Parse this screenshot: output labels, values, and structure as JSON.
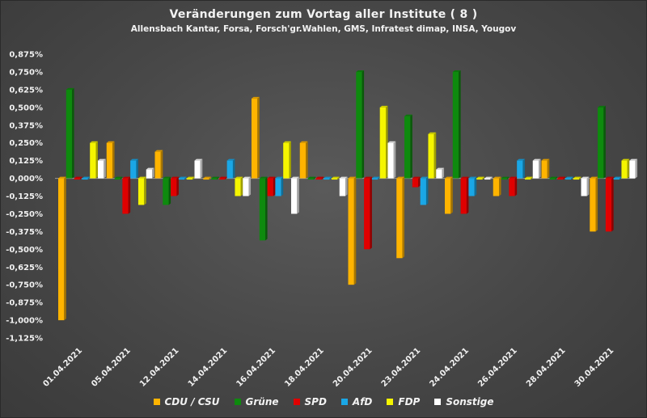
{
  "chart_data": {
    "type": "bar",
    "title": "Veränderungen zum Vortag aller Institute ( 8 )",
    "subtitle": "Allensbach Kantar, Forsa, Forsch'gr.Wahlen, GMS, Infratest dimap, INSA, Yougov",
    "categories": [
      "01.04.2021",
      "05.04.2021",
      "12.04.2021",
      "14.04.2021",
      "16.04.2021",
      "18.04.2021",
      "20.04.2021",
      "23.04.2021",
      "24.04.2021",
      "26.04.2021",
      "28.04.2021",
      "30.04.2021"
    ],
    "series": [
      {
        "name": "CDU / CSU",
        "color": "#ffb400",
        "values": [
          -1.0,
          0.25,
          0.1875,
          0.0,
          0.5625,
          0.25,
          -0.75,
          -0.5625,
          -0.25,
          -0.125,
          0.125,
          -0.375
        ]
      },
      {
        "name": "Grüne",
        "color": "#0e8a0e",
        "values": [
          0.625,
          0.0,
          -0.1875,
          0.0,
          -0.4375,
          0.0,
          0.75,
          0.4375,
          0.75,
          0.0,
          0.0,
          0.5
        ]
      },
      {
        "name": "SPD",
        "color": "#e00000",
        "values": [
          0.0,
          -0.25,
          -0.125,
          0.0,
          -0.125,
          0.0,
          -0.5,
          -0.0625,
          -0.25,
          -0.125,
          0.0,
          -0.375
        ]
      },
      {
        "name": "AfD",
        "color": "#1aa7e6",
        "values": [
          0.0,
          0.125,
          0.0,
          0.125,
          -0.125,
          0.0,
          0.0,
          -0.1875,
          -0.125,
          0.125,
          0.0,
          0.0
        ]
      },
      {
        "name": "FDP",
        "color": "#f5f500",
        "values": [
          0.25,
          -0.1875,
          0.0,
          -0.125,
          0.25,
          0.0,
          0.5,
          0.3125,
          0.0,
          0.0,
          0.0,
          0.125
        ]
      },
      {
        "name": "Sonstige",
        "color": "#ffffff",
        "values": [
          0.125,
          0.0625,
          0.125,
          -0.125,
          -0.25,
          -0.125,
          0.25,
          0.0625,
          0.0,
          0.125,
          -0.125,
          0.125
        ]
      }
    ],
    "yticks": [
      "0,875%",
      "0,750%",
      "0,625%",
      "0,500%",
      "0,375%",
      "0,250%",
      "0,125%",
      "0,000%",
      "-0,125%",
      "-0,250%",
      "-0,375%",
      "-0,500%",
      "-0,625%",
      "-0,750%",
      "-0,875%",
      "-1,000%",
      "-1,125%"
    ],
    "ylim": [
      -1.125,
      0.875
    ],
    "legend_position": "bottom",
    "grid": false
  }
}
